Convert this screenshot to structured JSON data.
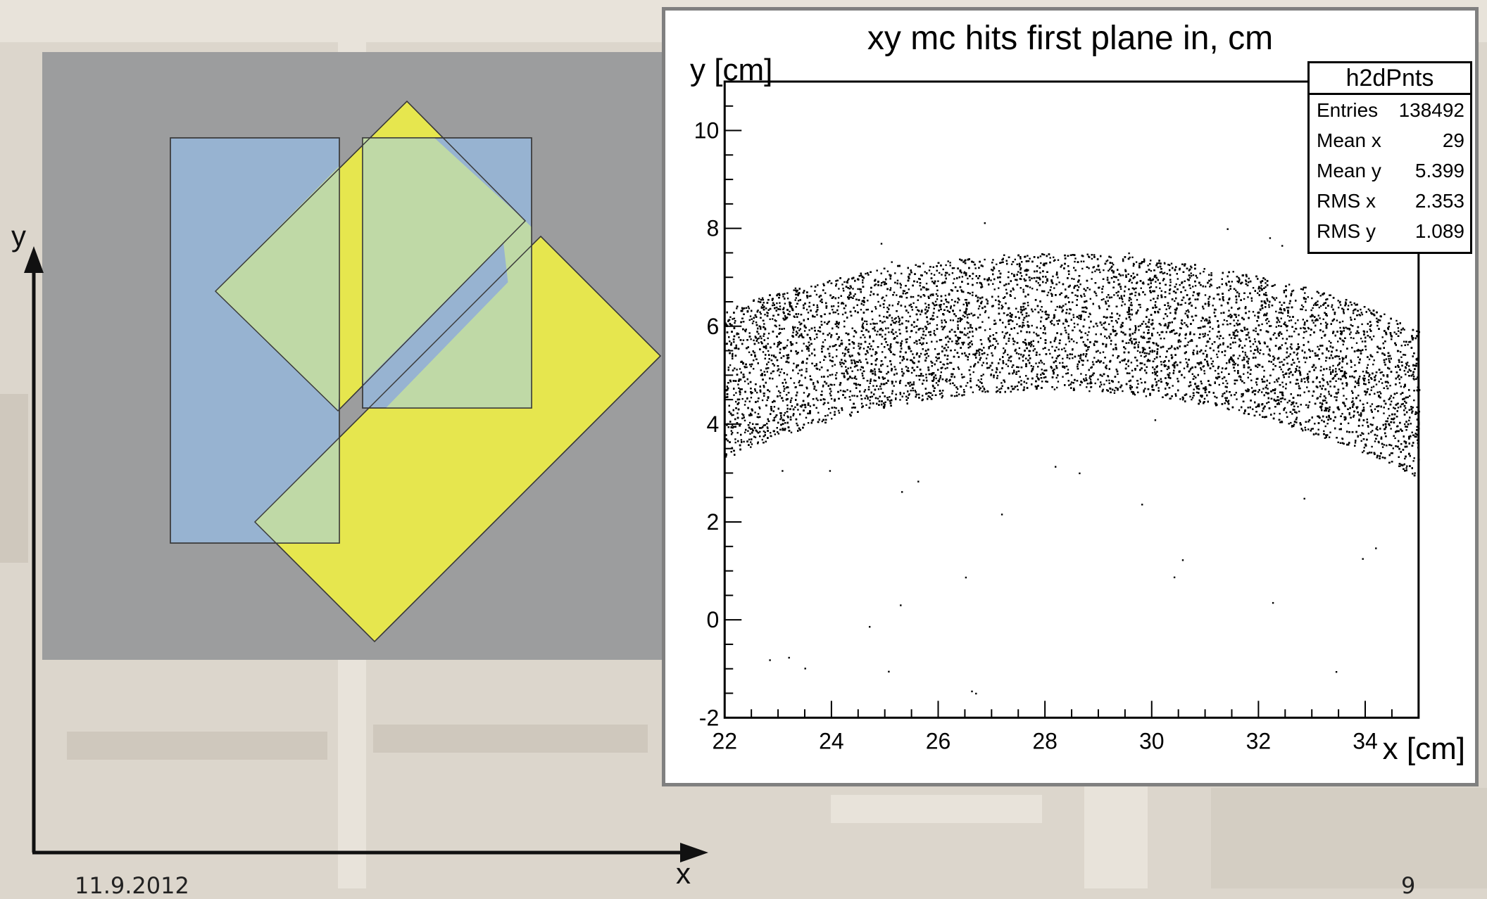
{
  "diagram": {
    "x_axis_label": "x",
    "y_axis_label": "y",
    "colors": {
      "panel": "#9c9d9e",
      "blue_rect": "#97b3d1",
      "yellow_rect": "#e6e64e",
      "overlap": "#bfd9a6",
      "outline": "#3a3a3a"
    }
  },
  "chart_data": {
    "type": "scatter",
    "title": "xy mc hits first plane in, cm",
    "xlabel": "x [cm]",
    "ylabel": "y [cm]",
    "xlim": [
      22,
      35
    ],
    "ylim": [
      -2,
      11
    ],
    "x_ticks": [
      22,
      24,
      26,
      28,
      30,
      32,
      34
    ],
    "y_ticks": [
      -2,
      0,
      2,
      4,
      6,
      8,
      10
    ],
    "x_tick_labels": [
      "22",
      "24",
      "26",
      "28",
      "30",
      "32",
      "34"
    ],
    "y_tick_labels": [
      "-2",
      "0",
      "2",
      "4",
      "6",
      "8",
      "10"
    ],
    "grid": false,
    "point_color": "#000000",
    "band": {
      "shape": "annular-sector",
      "center": [
        28.1,
        -9.3
      ],
      "inner_radius": 14.0,
      "outer_radius": 16.8,
      "angle_start_deg": 48,
      "angle_end_deg": 123
    },
    "stats_box": {
      "title": "h2dPnts",
      "rows": [
        {
          "label": "Entries",
          "value": "138492"
        },
        {
          "label": "Mean x",
          "value": "29"
        },
        {
          "label": "Mean y",
          "value": "5.399"
        },
        {
          "label": "RMS x",
          "value": "2.353"
        },
        {
          "label": "RMS y",
          "value": "1.089"
        }
      ]
    }
  },
  "footer": {
    "date": "11.9.2012",
    "page": "9"
  }
}
